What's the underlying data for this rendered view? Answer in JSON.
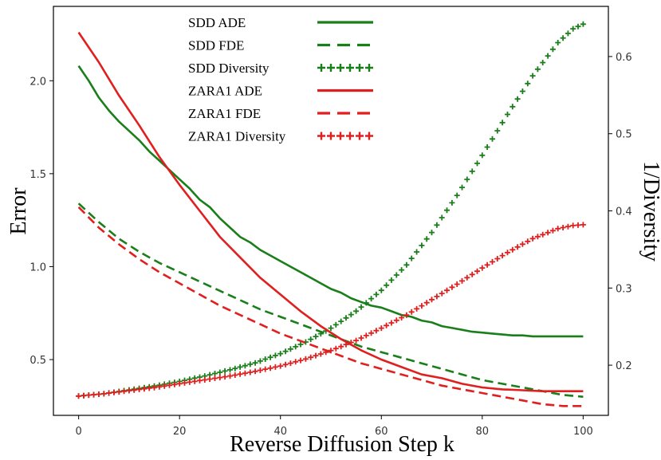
{
  "chart_data": {
    "type": "line",
    "xlabel": "Reverse Diffusion Step k",
    "ylabel": "Error",
    "y2label": "1/Diversity",
    "xlim": [
      -5,
      105
    ],
    "ylim": [
      0.2,
      2.4
    ],
    "y2lim": [
      0.135,
      0.665
    ],
    "xticks": [
      0,
      20,
      40,
      60,
      80,
      100
    ],
    "yticks": [
      0.5,
      1.0,
      1.5,
      2.0
    ],
    "y2ticks": [
      0.2,
      0.3,
      0.4,
      0.5,
      0.6
    ],
    "xtick_labels": [
      "0",
      "20",
      "40",
      "60",
      "80",
      "100"
    ],
    "ytick_labels": [
      "0.5",
      "1.0",
      "1.5",
      "2.0"
    ],
    "y2tick_labels": [
      "0.2",
      "0.3",
      "0.4",
      "0.5",
      "0.6"
    ],
    "legend_position": "top-center",
    "colors": {
      "sdd": "#1a7f1a",
      "zara1": "#e01f1f"
    },
    "series": [
      {
        "name": "SDD ADE",
        "key": "sdd_ade",
        "axis": "left",
        "style": "solid",
        "color": "#1a7f1a",
        "x": [
          0,
          2,
          4,
          6,
          8,
          10,
          12,
          14,
          16,
          18,
          20,
          22,
          24,
          26,
          28,
          30,
          32,
          34,
          36,
          38,
          40,
          42,
          44,
          46,
          48,
          50,
          52,
          54,
          56,
          58,
          60,
          62,
          64,
          66,
          68,
          70,
          72,
          74,
          76,
          78,
          80,
          82,
          84,
          86,
          88,
          90,
          92,
          94,
          96,
          98,
          100
        ],
        "y": [
          2.08,
          2.0,
          1.91,
          1.84,
          1.78,
          1.73,
          1.68,
          1.62,
          1.57,
          1.52,
          1.47,
          1.42,
          1.36,
          1.32,
          1.26,
          1.21,
          1.16,
          1.13,
          1.09,
          1.06,
          1.03,
          1.0,
          0.97,
          0.94,
          0.91,
          0.88,
          0.86,
          0.83,
          0.81,
          0.79,
          0.78,
          0.76,
          0.74,
          0.73,
          0.71,
          0.7,
          0.68,
          0.67,
          0.66,
          0.65,
          0.645,
          0.64,
          0.635,
          0.63,
          0.63,
          0.625,
          0.625,
          0.625,
          0.625,
          0.625,
          0.625
        ]
      },
      {
        "name": "SDD FDE",
        "key": "sdd_fde",
        "axis": "left",
        "style": "dashed",
        "color": "#1a7f1a",
        "x": [
          0,
          4,
          8,
          12,
          16,
          20,
          24,
          28,
          32,
          36,
          40,
          44,
          48,
          52,
          56,
          60,
          64,
          68,
          72,
          76,
          80,
          84,
          88,
          92,
          96,
          100
        ],
        "y": [
          1.34,
          1.24,
          1.15,
          1.08,
          1.02,
          0.97,
          0.92,
          0.87,
          0.82,
          0.77,
          0.73,
          0.69,
          0.65,
          0.61,
          0.57,
          0.54,
          0.51,
          0.48,
          0.45,
          0.42,
          0.39,
          0.37,
          0.35,
          0.33,
          0.31,
          0.3
        ]
      },
      {
        "name": "SDD Diversity",
        "key": "sdd_div",
        "axis": "right",
        "style": "plus",
        "color": "#1a7f1a",
        "x": [
          0,
          5,
          10,
          15,
          20,
          25,
          30,
          35,
          40,
          45,
          50,
          55,
          60,
          65,
          70,
          75,
          80,
          85,
          90,
          95,
          98,
          100
        ],
        "y": [
          0.16,
          0.163,
          0.168,
          0.173,
          0.179,
          0.186,
          0.194,
          0.203,
          0.215,
          0.23,
          0.248,
          0.27,
          0.297,
          0.33,
          0.372,
          0.42,
          0.472,
          0.525,
          0.575,
          0.618,
          0.636,
          0.642
        ]
      },
      {
        "name": "ZARA1 ADE",
        "key": "zara_ade",
        "axis": "left",
        "style": "solid",
        "color": "#e01f1f",
        "x": [
          0,
          4,
          8,
          12,
          16,
          20,
          24,
          28,
          32,
          36,
          40,
          44,
          48,
          52,
          56,
          60,
          64,
          68,
          72,
          76,
          80,
          84,
          88,
          92,
          96,
          100
        ],
        "y": [
          2.26,
          2.1,
          1.92,
          1.76,
          1.59,
          1.44,
          1.3,
          1.16,
          1.05,
          0.94,
          0.85,
          0.76,
          0.68,
          0.61,
          0.55,
          0.5,
          0.46,
          0.42,
          0.4,
          0.37,
          0.35,
          0.34,
          0.335,
          0.33,
          0.33,
          0.33
        ]
      },
      {
        "name": "ZARA1 FDE",
        "key": "zara_fde",
        "axis": "left",
        "style": "dashed",
        "color": "#e01f1f",
        "x": [
          0,
          4,
          8,
          12,
          16,
          20,
          24,
          28,
          32,
          36,
          40,
          44,
          48,
          52,
          56,
          60,
          64,
          68,
          72,
          76,
          80,
          84,
          88,
          92,
          96,
          100
        ],
        "y": [
          1.32,
          1.21,
          1.12,
          1.04,
          0.97,
          0.91,
          0.85,
          0.79,
          0.74,
          0.69,
          0.64,
          0.6,
          0.56,
          0.52,
          0.48,
          0.45,
          0.42,
          0.39,
          0.36,
          0.34,
          0.32,
          0.3,
          0.28,
          0.26,
          0.25,
          0.25
        ]
      },
      {
        "name": "ZARA1 Diversity",
        "key": "zara_div",
        "axis": "right",
        "style": "plus",
        "color": "#e01f1f",
        "x": [
          0,
          5,
          10,
          15,
          20,
          25,
          30,
          35,
          40,
          45,
          50,
          55,
          60,
          65,
          70,
          75,
          80,
          85,
          90,
          95,
          98,
          100
        ],
        "y": [
          0.16,
          0.163,
          0.167,
          0.171,
          0.176,
          0.181,
          0.186,
          0.192,
          0.199,
          0.208,
          0.219,
          0.232,
          0.248,
          0.265,
          0.285,
          0.305,
          0.326,
          0.346,
          0.364,
          0.377,
          0.381,
          0.382
        ]
      }
    ]
  }
}
